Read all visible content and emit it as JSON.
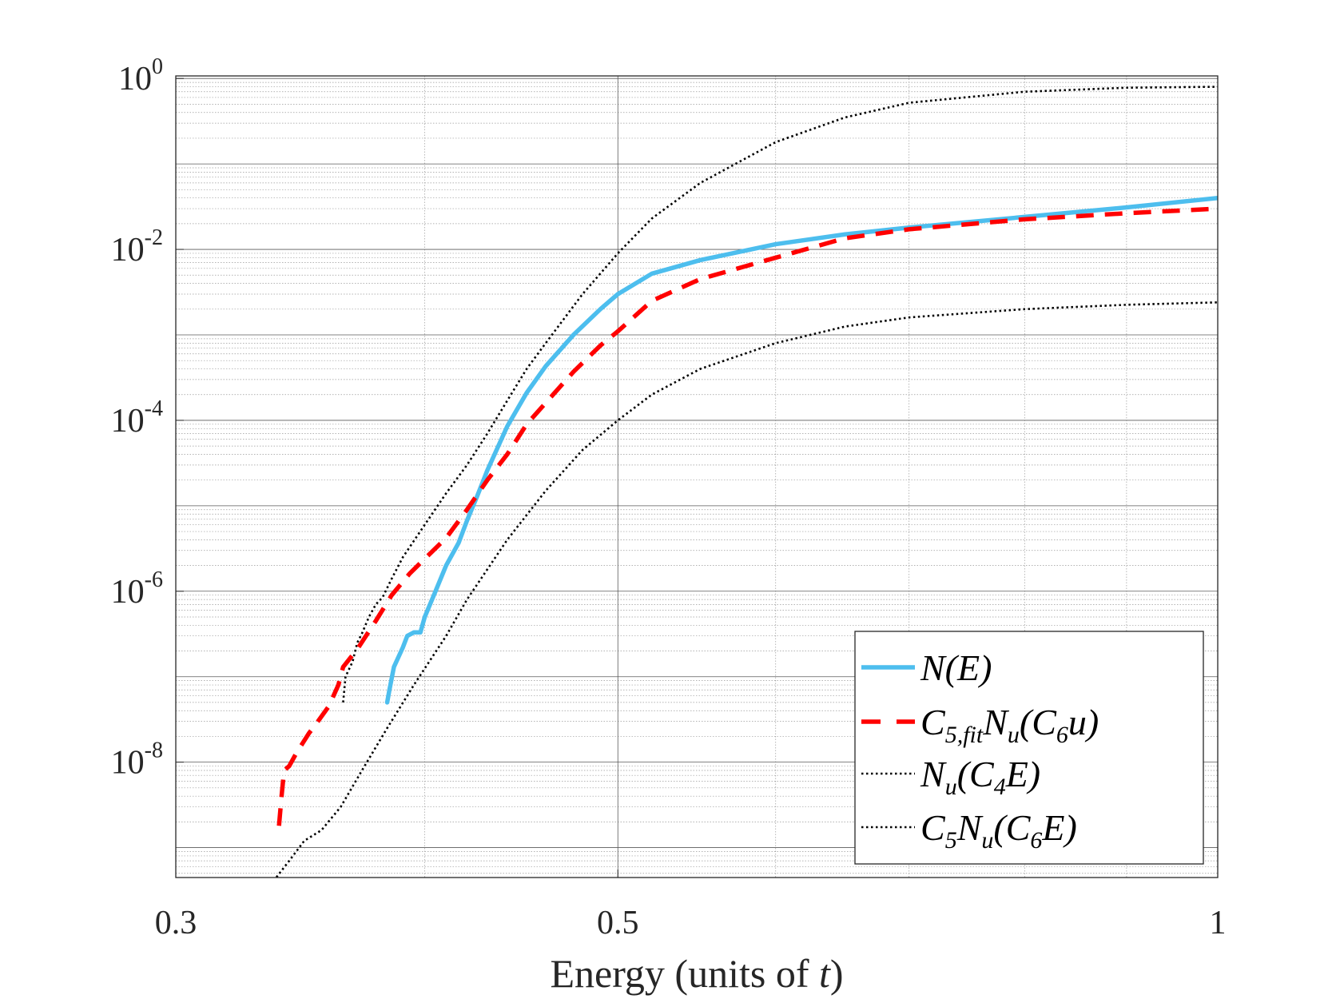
{
  "chart_data": {
    "type": "line",
    "xscale": "log",
    "yscale": "log",
    "xlim": [
      0.3,
      1
    ],
    "ylim_log10": [
      -9.35,
      0.03
    ],
    "xlabel": "Energy (units of t)",
    "xlabel_parts": {
      "prefix": "Energy (units of ",
      "variable": "t",
      "suffix": ")"
    },
    "ylabel": "",
    "grid": true,
    "minor_grid": true,
    "x_ticks": [
      {
        "value": 0.3,
        "label": "0.3"
      },
      {
        "value": 0.5,
        "label": "0.5"
      },
      {
        "value": 1,
        "label": "1"
      }
    ],
    "x_minor_grid": [
      0.4,
      0.6,
      0.7,
      0.8,
      0.9
    ],
    "y_ticks": [
      {
        "exp": 0,
        "base": "10",
        "power": "0"
      },
      {
        "exp": -2,
        "base": "10",
        "power": "-2"
      },
      {
        "exp": -4,
        "base": "10",
        "power": "-4"
      },
      {
        "exp": -6,
        "base": "10",
        "power": "-6"
      },
      {
        "exp": -8,
        "base": "10",
        "power": "-8"
      }
    ],
    "legend_position": "bottom-right",
    "series": [
      {
        "id": "n-e",
        "name": "N(E)",
        "legend": {
          "parts": [
            [
              "N(E)",
              "main"
            ]
          ]
        },
        "color": "#4DBEEE",
        "style": "solid",
        "x": [
          0.383,
          0.384,
          0.386,
          0.39,
          0.392,
          0.395,
          0.398,
          0.4,
          0.405,
          0.41,
          0.416,
          0.42,
          0.425,
          0.43,
          0.44,
          0.45,
          0.46,
          0.475,
          0.49,
          0.5,
          0.52,
          0.55,
          0.6,
          0.65,
          0.7,
          0.8,
          0.9,
          1.0
        ],
        "y": [
          5e-08,
          7e-08,
          1.3e-07,
          2.2e-07,
          3e-07,
          3.3e-07,
          3.3e-07,
          5e-07,
          1e-06,
          2e-06,
          3.7e-06,
          6.7e-06,
          1.3e-05,
          2.6e-05,
          8.5e-05,
          0.00021,
          0.00043,
          0.001,
          0.002,
          0.003,
          0.0052,
          0.0075,
          0.0115,
          0.015,
          0.018,
          0.024,
          0.031,
          0.04
        ]
      },
      {
        "id": "c5fit-nu-c6u",
        "name": "C5,fit Nu(C6u)",
        "legend": {
          "parts": [
            [
              "C",
              "main"
            ],
            [
              "5,fit",
              "sub"
            ],
            [
              "N",
              "main"
            ],
            [
              "u",
              "sub"
            ],
            [
              "(C",
              "main"
            ],
            [
              "6",
              "sub"
            ],
            [
              "u)",
              "main"
            ]
          ]
        },
        "color": "#FF0000",
        "style": "dashed",
        "x": [
          0.338,
          0.339,
          0.34,
          0.342,
          0.345,
          0.35,
          0.352,
          0.358,
          0.362,
          0.364,
          0.37,
          0.378,
          0.385,
          0.393,
          0.4,
          0.41,
          0.42,
          0.43,
          0.44,
          0.45,
          0.46,
          0.475,
          0.49,
          0.5,
          0.52,
          0.55,
          0.6,
          0.65,
          0.7,
          0.8,
          0.9,
          1.0
        ],
        "y": [
          1.8e-09,
          4e-09,
          8e-09,
          9e-09,
          1.3e-08,
          2.2e-08,
          2.6e-08,
          4.5e-08,
          8e-08,
          1.3e-07,
          2.1e-07,
          4.5e-07,
          9e-07,
          1.6e-06,
          2.4e-06,
          4.2e-06,
          9e-06,
          2e-05,
          4e-05,
          9e-05,
          0.00016,
          0.00037,
          0.00075,
          0.0011,
          0.0025,
          0.0045,
          0.008,
          0.0135,
          0.0172,
          0.0225,
          0.0265,
          0.03
        ]
      },
      {
        "id": "nu-c4e",
        "name": "Nu(C4E)",
        "legend": {
          "parts": [
            [
              "N",
              "main"
            ],
            [
              "u",
              "sub"
            ],
            [
              "(C",
              "main"
            ],
            [
              "4",
              "sub"
            ],
            [
              "E)",
              "main"
            ]
          ]
        },
        "color": "#000000",
        "style": "dotted",
        "x": [
          0.364,
          0.365,
          0.368,
          0.37,
          0.372,
          0.375,
          0.378,
          0.381,
          0.385,
          0.39,
          0.4,
          0.41,
          0.42,
          0.43,
          0.44,
          0.45,
          0.46,
          0.48,
          0.5,
          0.52,
          0.55,
          0.6,
          0.65,
          0.7,
          0.8,
          0.9,
          1.0
        ],
        "y": [
          5e-08,
          1e-07,
          1.5e-07,
          2.5e-07,
          3.2e-07,
          5e-07,
          7e-07,
          8.5e-07,
          1.4e-06,
          2.5e-06,
          6e-06,
          1.4e-05,
          3e-05,
          7e-05,
          0.00017,
          0.0004,
          0.0008,
          0.003,
          0.009,
          0.023,
          0.06,
          0.18,
          0.35,
          0.52,
          0.7,
          0.78,
          0.8
        ]
      },
      {
        "id": "c5-nu-c6e",
        "name": "C5 Nu(C6E)",
        "legend": {
          "parts": [
            [
              "C",
              "main"
            ],
            [
              "5",
              "sub"
            ],
            [
              "N",
              "main"
            ],
            [
              "u",
              "sub"
            ],
            [
              "(C",
              "main"
            ],
            [
              "6",
              "sub"
            ],
            [
              "E)",
              "main"
            ]
          ]
        },
        "color": "#000000",
        "style": "dotted",
        "x": [
          0.337,
          0.342,
          0.348,
          0.355,
          0.363,
          0.372,
          0.383,
          0.395,
          0.41,
          0.42,
          0.44,
          0.46,
          0.48,
          0.5,
          0.52,
          0.55,
          0.6,
          0.65,
          0.7,
          0.8,
          0.9,
          1.0
        ],
        "y": [
          4.5e-10,
          7e-10,
          1.2e-09,
          1.6e-09,
          3e-09,
          8e-09,
          2.5e-08,
          8e-08,
          3e-07,
          8e-07,
          4e-06,
          1.5e-05,
          4.5e-05,
          0.0001,
          0.0002,
          0.0004,
          0.0008,
          0.00125,
          0.0016,
          0.002,
          0.00225,
          0.0024
        ]
      }
    ]
  }
}
